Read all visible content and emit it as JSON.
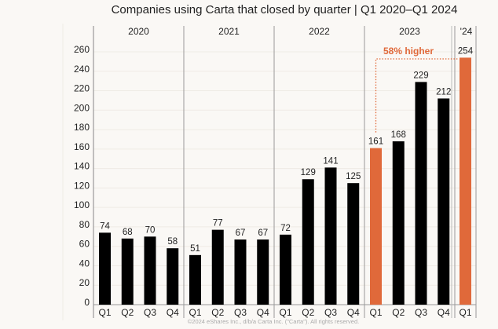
{
  "chart_data": {
    "type": "bar",
    "title": "Companies using Carta that closed by quarter | Q1 2020–Q1 2024",
    "xlabel": "",
    "ylabel": "",
    "ylim": [
      0,
      260
    ],
    "yticks": [
      0,
      20,
      40,
      60,
      80,
      100,
      120,
      140,
      160,
      180,
      200,
      220,
      240,
      260
    ],
    "grid": true,
    "groups": [
      {
        "label": "2020",
        "categories": [
          "Q1",
          "Q2",
          "Q3",
          "Q4"
        ],
        "values": [
          74,
          68,
          70,
          58
        ],
        "highlight": [
          false,
          false,
          false,
          false
        ]
      },
      {
        "label": "2021",
        "categories": [
          "Q1",
          "Q2",
          "Q3",
          "Q4"
        ],
        "values": [
          51,
          77,
          67,
          67
        ],
        "highlight": [
          false,
          false,
          false,
          false
        ]
      },
      {
        "label": "2022",
        "categories": [
          "Q1",
          "Q2",
          "Q3",
          "Q4"
        ],
        "values": [
          72,
          129,
          141,
          125
        ],
        "highlight": [
          false,
          false,
          false,
          false
        ]
      },
      {
        "label": "2023",
        "categories": [
          "Q1",
          "Q2",
          "Q3",
          "Q4"
        ],
        "values": [
          161,
          168,
          229,
          212
        ],
        "highlight": [
          true,
          false,
          false,
          false
        ]
      },
      {
        "label": "'24",
        "categories": [
          "Q1"
        ],
        "values": [
          254
        ],
        "highlight": [
          true
        ]
      }
    ],
    "annotation": {
      "text": "58% higher",
      "from": "2023 Q1",
      "to": "2024 Q1"
    },
    "colors": {
      "default": "#000000",
      "highlight": "#e0693a"
    }
  },
  "footer": "©2024 eShares Inc., d/b/a Carta Inc. (\"Carta\"). All rights reserved."
}
